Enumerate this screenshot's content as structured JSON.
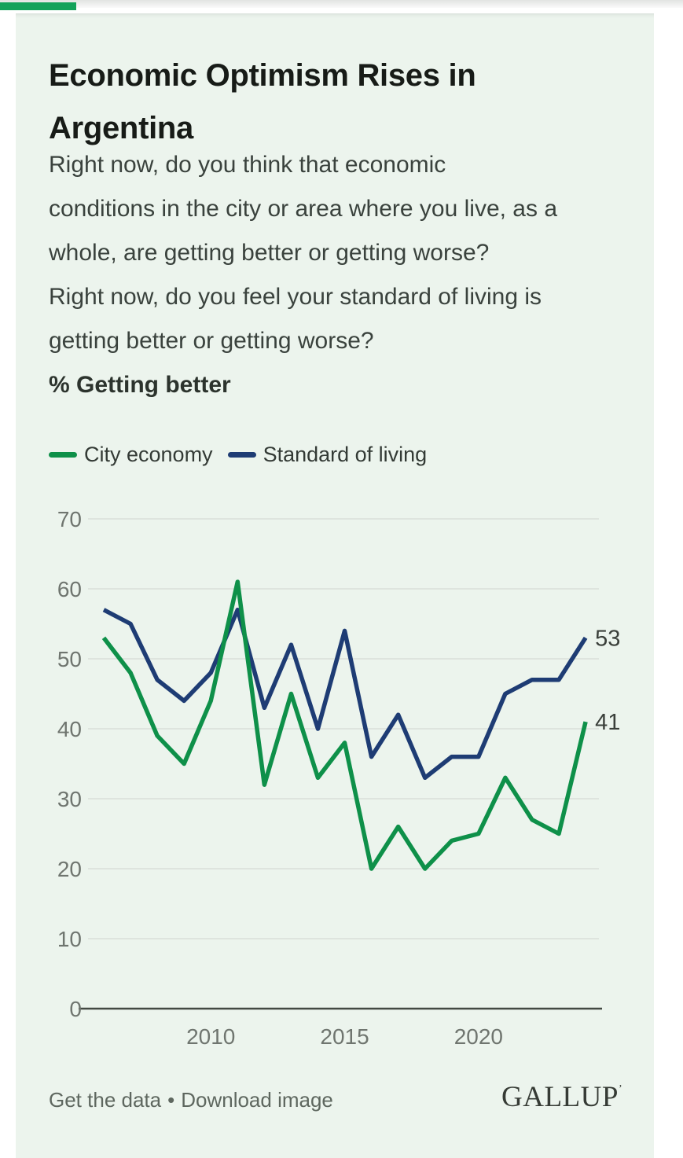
{
  "topbar": {
    "progress_color": "#13A25A"
  },
  "title": "Economic Optimism Rises in\nArgentina",
  "question": "Right now, do you think that economic\nconditions in the city or area where you live, as a\nwhole, are getting better or getting worse?\nRight now, do you feel your standard of living is\ngetting better or getting worse?",
  "metric_label": "% Getting better",
  "legend": [
    {
      "label": "City economy",
      "color": "#0E9049"
    },
    {
      "label": "Standard of living",
      "color": "#1E3C74"
    }
  ],
  "chart_data": {
    "type": "line",
    "title": "Economic Optimism Rises in Argentina",
    "subtitle": "% Getting better",
    "x": [
      2006,
      2007,
      2008,
      2009,
      2010,
      2011,
      2012,
      2013,
      2014,
      2015,
      2016,
      2017,
      2018,
      2019,
      2020,
      2021,
      2022,
      2023,
      2024
    ],
    "series": [
      {
        "name": "Standard of living",
        "color": "#1E3C74",
        "end_label": "53",
        "values": [
          57,
          55,
          47,
          44,
          48,
          57,
          43,
          52,
          40,
          54,
          36,
          42,
          33,
          36,
          36,
          45,
          47,
          47,
          53
        ]
      },
      {
        "name": "City economy",
        "color": "#0E9049",
        "end_label": "41",
        "values": [
          53,
          48,
          39,
          35,
          44,
          61,
          32,
          45,
          33,
          38,
          20,
          26,
          20,
          24,
          25,
          33,
          27,
          25,
          41
        ]
      }
    ],
    "ylim": [
      0,
      70
    ],
    "yticks": [
      0,
      10,
      20,
      30,
      40,
      50,
      60,
      70
    ],
    "xticks": [
      2010,
      2015,
      2020
    ],
    "grid": true,
    "legend_position": "top",
    "colors": {
      "gridline": "#DADFDA",
      "axis": "#434943",
      "tick_label": "#6F756F",
      "end_label": "#3A3F3A"
    }
  },
  "footer": {
    "get_the_data": "Get the data",
    "separator": "•",
    "download_image": "Download image",
    "logo": "GALLUP",
    "logo_mark": "’"
  }
}
